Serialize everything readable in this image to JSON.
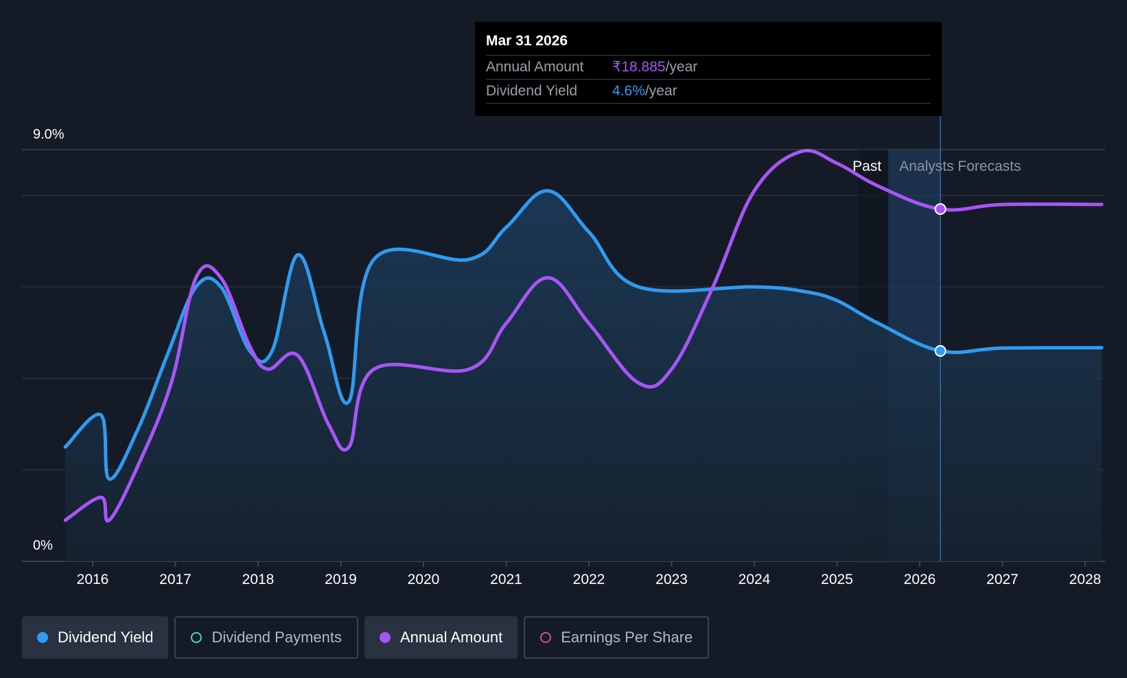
{
  "tooltip": {
    "date": "Mar 31 2026",
    "rows": [
      {
        "label": "Annual Amount",
        "value": "₹18.885",
        "unit": "/year"
      },
      {
        "label": "Dividend Yield",
        "value": "4.6%",
        "unit": "/year"
      }
    ]
  },
  "regions": {
    "past": "Past",
    "forecast": "Analysts Forecasts"
  },
  "legend": [
    {
      "label": "Dividend Yield",
      "color": "#2f9bf0",
      "active": true,
      "filled": true
    },
    {
      "label": "Dividend Payments",
      "color": "#4fd1c5",
      "active": false,
      "filled": false
    },
    {
      "label": "Annual Amount",
      "color": "#a855f7",
      "active": true,
      "filled": true
    },
    {
      "label": "Earnings Per Share",
      "color": "#d64f86",
      "active": false,
      "filled": false
    }
  ],
  "colors": {
    "background": "#151b26",
    "yield": "#2f9bf0",
    "amount": "#a855f7",
    "grid": "#2a3342"
  },
  "chart_data": {
    "type": "line",
    "x_axis": {
      "ticks": [
        "2016",
        "2017",
        "2018",
        "2019",
        "2020",
        "2021",
        "2022",
        "2023",
        "2024",
        "2025",
        "2026",
        "2027",
        "2028"
      ],
      "range": [
        2015.3,
        2028.2
      ]
    },
    "y_axis": {
      "ticks": [
        "0%",
        "9.0%"
      ],
      "range": [
        0,
        9.0
      ],
      "grid": true
    },
    "series": [
      {
        "name": "Dividend Yield",
        "unit": "%",
        "points": [
          [
            2015.67,
            2.5
          ],
          [
            2016.1,
            3.2
          ],
          [
            2016.2,
            1.8
          ],
          [
            2016.55,
            2.9
          ],
          [
            2016.9,
            4.5
          ],
          [
            2017.25,
            6.0
          ],
          [
            2017.55,
            6.0
          ],
          [
            2017.9,
            4.6
          ],
          [
            2018.17,
            4.6
          ],
          [
            2018.48,
            6.7
          ],
          [
            2018.8,
            5.0
          ],
          [
            2019.1,
            3.5
          ],
          [
            2019.4,
            6.6
          ],
          [
            2020.55,
            6.6
          ],
          [
            2021.0,
            7.3
          ],
          [
            2021.5,
            8.1
          ],
          [
            2022.0,
            7.2
          ],
          [
            2022.6,
            6.0
          ],
          [
            2024.0,
            6.0
          ],
          [
            2024.6,
            5.9
          ],
          [
            2025.0,
            5.7
          ],
          [
            2025.5,
            5.2
          ],
          [
            2026.25,
            4.6
          ],
          [
            2027.0,
            4.66
          ],
          [
            2028.2,
            4.67
          ]
        ]
      },
      {
        "name": "Annual Amount",
        "unit": "%-scaled",
        "points": [
          [
            2015.67,
            0.9
          ],
          [
            2016.1,
            1.4
          ],
          [
            2016.2,
            0.9
          ],
          [
            2016.55,
            2.1
          ],
          [
            2016.95,
            3.9
          ],
          [
            2017.25,
            6.2
          ],
          [
            2017.55,
            6.2
          ],
          [
            2017.9,
            4.7
          ],
          [
            2018.12,
            4.2
          ],
          [
            2018.48,
            4.5
          ],
          [
            2018.85,
            3.0
          ],
          [
            2019.1,
            2.5
          ],
          [
            2019.4,
            4.2
          ],
          [
            2020.55,
            4.2
          ],
          [
            2021.0,
            5.2
          ],
          [
            2021.5,
            6.2
          ],
          [
            2022.0,
            5.2
          ],
          [
            2022.6,
            3.9
          ],
          [
            2023.0,
            4.2
          ],
          [
            2023.5,
            6.0
          ],
          [
            2024.0,
            8.1
          ],
          [
            2024.55,
            8.95
          ],
          [
            2025.0,
            8.7
          ],
          [
            2025.5,
            8.2
          ],
          [
            2026.25,
            7.7
          ],
          [
            2027.0,
            7.8
          ],
          [
            2028.2,
            7.8
          ]
        ]
      }
    ],
    "highlight": {
      "x": 2026.25,
      "yield": "4.6%",
      "amount": "₹18.885"
    },
    "past_forecast_split": [
      2025.25,
      2025.62
    ]
  }
}
